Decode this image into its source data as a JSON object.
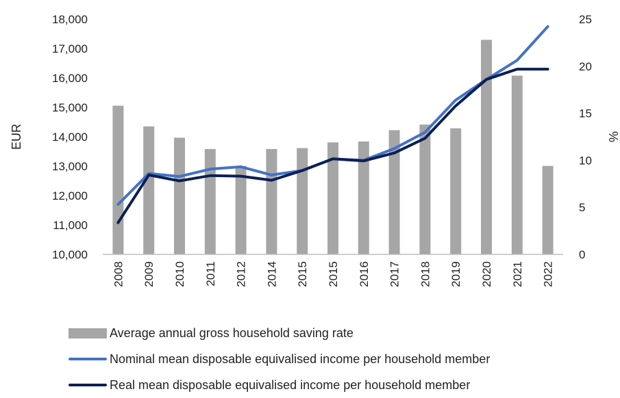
{
  "colors": {
    "bar": "#a6a6a6",
    "nominal": "#4472c4",
    "real": "#0b1f55",
    "axis": "#bfbfbf"
  },
  "chart_data": {
    "type": "bar",
    "categories": [
      "2008",
      "2009",
      "2010",
      "2011",
      "2012",
      "2014",
      "2015",
      "2015",
      "2016",
      "2017",
      "2018",
      "2019",
      "2020",
      "2021",
      "2022"
    ],
    "ylabel": "EUR",
    "y2label": "%",
    "ylim": [
      10000,
      18000
    ],
    "y2lim": [
      0,
      25
    ],
    "yticks": [
      "10,000",
      "11,000",
      "12,000",
      "13,000",
      "14,000",
      "15,000",
      "16,000",
      "17,000",
      "18,000"
    ],
    "y2ticks": [
      "0",
      "5",
      "10",
      "15",
      "20",
      "25"
    ],
    "legend_position": "bottom",
    "grid": false,
    "series": [
      {
        "name": "Average annual gross household saving rate",
        "type": "bar",
        "axis": "right",
        "values": [
          15.8,
          13.6,
          12.4,
          11.2,
          9.4,
          11.2,
          11.3,
          11.9,
          12.0,
          13.2,
          13.8,
          13.4,
          22.8,
          19.0,
          9.4
        ]
      },
      {
        "name": "Nominal mean disposable equivalised income per household member",
        "type": "line",
        "axis": "left",
        "values": [
          11700,
          12750,
          12650,
          12900,
          12980,
          12700,
          12850,
          13250,
          13200,
          13600,
          14150,
          15250,
          15950,
          16600,
          17750
        ]
      },
      {
        "name": "Real mean disposable equivalised income per household member",
        "type": "line",
        "axis": "left",
        "values": [
          11080,
          12700,
          12500,
          12680,
          12660,
          12520,
          12850,
          13250,
          13180,
          13450,
          13950,
          15050,
          15950,
          16300,
          16300
        ]
      }
    ]
  }
}
